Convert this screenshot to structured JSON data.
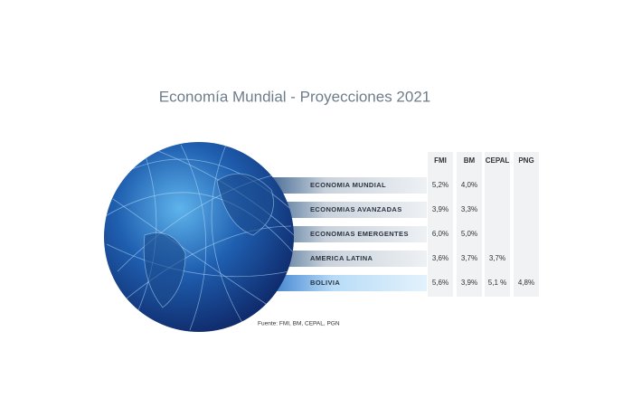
{
  "title": "Economía Mundial - Proyecciones 2021",
  "table": {
    "columns": [
      "FMI",
      "BM",
      "CEPAL",
      "PNG"
    ],
    "rows": [
      {
        "label": "ECONOMIA  MUNDIAL",
        "cells": [
          "5,2%",
          "4,0%",
          null,
          null
        ]
      },
      {
        "label": "ECONOMIAS  AVANZADAS",
        "cells": [
          "3,9%",
          "3,3%",
          null,
          null
        ]
      },
      {
        "label": "ECONOMIAS  EMERGENTES",
        "cells": [
          "6,0%",
          "5,0%",
          null,
          null
        ]
      },
      {
        "label": "AMERICA LATINA",
        "cells": [
          "3,6%",
          "3,7%",
          "3,7%",
          null
        ]
      },
      {
        "label": "BOLIVIA",
        "cells": [
          "5,6%",
          "3,9%",
          "5,1 %",
          "4,8%"
        ]
      }
    ]
  },
  "source": "Fuente: FMI, BM, CEPAL, PGN"
}
